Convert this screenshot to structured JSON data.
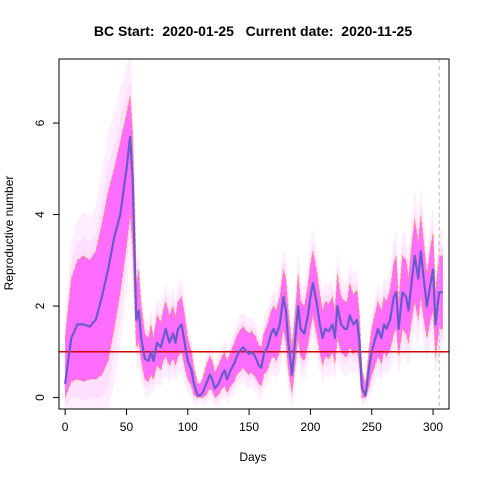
{
  "chart_data": {
    "type": "line",
    "title": "BC Start:  2020-01-25   Current date:  2020-11-25",
    "xlabel": "Days",
    "ylabel": "Reproductive number",
    "xlim": [
      -5,
      313
    ],
    "ylim": [
      -0.25,
      7.4
    ],
    "xticks": [
      0,
      50,
      100,
      150,
      200,
      250,
      300
    ],
    "yticks": [
      0,
      2,
      4,
      6
    ],
    "reference_line": {
      "y": 1,
      "color": "#dd0000"
    },
    "current_day_marker": {
      "x": 305
    },
    "colors": {
      "median": "#6a5acd",
      "band": "#ff66ff",
      "haze": "#ffd9ff",
      "bound": "#ff9944"
    },
    "series": [
      {
        "x": [
          0,
          5,
          10,
          15,
          20,
          25,
          30,
          35,
          40,
          45,
          50,
          53,
          55,
          57,
          58,
          60,
          62,
          65,
          68,
          70,
          72,
          75,
          78,
          80,
          82,
          85,
          88,
          90,
          92,
          95,
          98,
          100,
          103,
          105,
          108,
          110,
          112,
          115,
          118,
          120,
          122,
          125,
          128,
          130,
          132,
          135,
          138,
          140,
          142,
          145,
          148,
          150,
          152,
          155,
          158,
          160,
          162,
          165,
          168,
          170,
          172,
          175,
          178,
          180,
          182,
          185,
          188,
          190,
          192,
          195,
          198,
          200,
          202,
          205,
          208,
          210,
          212,
          215,
          218,
          220,
          222,
          225,
          228,
          230,
          232,
          235,
          238,
          240,
          242,
          245,
          248,
          250,
          252,
          255,
          258,
          260,
          262,
          265,
          268,
          270,
          272,
          275,
          278,
          280,
          282,
          285,
          288,
          290,
          292,
          295,
          298,
          300,
          302,
          305,
          308
        ],
        "median": [
          0.3,
          1.3,
          1.6,
          1.6,
          1.55,
          1.7,
          2.2,
          2.8,
          3.5,
          4.0,
          5.0,
          5.7,
          4.8,
          2.8,
          1.7,
          1.9,
          1.3,
          0.85,
          0.8,
          1.0,
          0.8,
          1.2,
          1.1,
          1.3,
          1.5,
          1.2,
          1.4,
          1.2,
          1.5,
          1.6,
          1.1,
          0.8,
          0.6,
          0.3,
          0.05,
          0.05,
          0.1,
          0.3,
          0.5,
          0.4,
          0.2,
          0.3,
          0.5,
          0.6,
          0.4,
          0.6,
          0.75,
          0.9,
          1.0,
          1.1,
          1.0,
          0.95,
          1.0,
          0.9,
          0.7,
          0.65,
          0.95,
          1.1,
          1.4,
          1.5,
          1.35,
          1.6,
          2.2,
          1.9,
          1.2,
          0.5,
          1.4,
          2.0,
          1.5,
          1.4,
          1.8,
          2.2,
          2.5,
          2.1,
          1.55,
          1.3,
          1.5,
          1.45,
          1.6,
          1.3,
          2.0,
          1.6,
          1.5,
          1.5,
          1.8,
          1.6,
          1.7,
          1.2,
          0.2,
          0.05,
          0.7,
          1.0,
          1.2,
          1.5,
          1.3,
          1.6,
          1.5,
          1.7,
          2.2,
          2.3,
          1.5,
          2.3,
          2.2,
          1.9,
          2.4,
          3.1,
          2.6,
          3.2,
          2.7,
          2.0,
          2.5,
          2.8,
          1.6,
          2.3,
          2.3
        ],
        "lower": [
          0.0,
          0.35,
          0.4,
          0.35,
          0.4,
          0.4,
          0.5,
          0.8,
          1.5,
          2.3,
          3.3,
          4.0,
          3.3,
          1.9,
          1.1,
          1.2,
          0.8,
          0.4,
          0.35,
          0.5,
          0.4,
          0.7,
          0.6,
          0.8,
          0.9,
          0.7,
          0.85,
          0.7,
          0.9,
          1.0,
          0.6,
          0.4,
          0.25,
          0.05,
          0.0,
          0.0,
          0.0,
          0.05,
          0.2,
          0.15,
          0.0,
          0.05,
          0.2,
          0.25,
          0.1,
          0.25,
          0.35,
          0.5,
          0.55,
          0.65,
          0.55,
          0.5,
          0.55,
          0.45,
          0.3,
          0.25,
          0.5,
          0.6,
          0.85,
          0.9,
          0.8,
          1.0,
          1.5,
          1.2,
          0.6,
          0.1,
          0.8,
          1.3,
          0.9,
          0.8,
          1.15,
          1.5,
          1.8,
          1.4,
          0.95,
          0.7,
          0.9,
          0.85,
          1.0,
          0.75,
          1.3,
          1.0,
          0.9,
          0.9,
          1.1,
          0.95,
          1.05,
          0.65,
          0.0,
          0.0,
          0.25,
          0.5,
          0.65,
          0.9,
          0.75,
          1.0,
          0.9,
          1.05,
          1.4,
          1.5,
          0.9,
          1.5,
          1.4,
          1.2,
          1.6,
          2.1,
          1.7,
          2.2,
          1.8,
          1.3,
          1.7,
          1.9,
          0.9,
          1.5,
          1.5
        ],
        "upper": [
          1.3,
          2.6,
          3.0,
          3.1,
          3.0,
          3.2,
          3.8,
          4.5,
          5.0,
          5.6,
          6.2,
          6.6,
          5.8,
          3.9,
          2.5,
          2.8,
          2.0,
          1.4,
          1.3,
          1.6,
          1.3,
          1.8,
          1.65,
          1.9,
          2.1,
          1.8,
          2.0,
          1.75,
          2.1,
          2.2,
          1.7,
          1.3,
          1.0,
          0.65,
          0.3,
          0.3,
          0.4,
          0.7,
          0.9,
          0.8,
          0.55,
          0.7,
          0.9,
          1.0,
          0.8,
          1.0,
          1.2,
          1.35,
          1.45,
          1.55,
          1.45,
          1.4,
          1.45,
          1.35,
          1.15,
          1.1,
          1.4,
          1.6,
          1.9,
          2.0,
          1.9,
          2.2,
          2.8,
          2.6,
          1.9,
          1.1,
          2.0,
          2.7,
          2.1,
          2.0,
          2.45,
          2.9,
          3.2,
          2.8,
          2.2,
          1.9,
          2.1,
          2.05,
          2.2,
          1.9,
          2.7,
          2.2,
          2.1,
          2.1,
          2.5,
          2.25,
          2.35,
          1.8,
          0.6,
          0.3,
          1.1,
          1.5,
          1.75,
          2.1,
          1.9,
          2.2,
          2.1,
          2.35,
          2.95,
          3.1,
          2.1,
          3.1,
          3.0,
          2.6,
          3.2,
          3.9,
          3.4,
          4.0,
          3.5,
          2.7,
          3.3,
          3.6,
          2.3,
          3.1,
          3.1
        ]
      }
    ]
  }
}
